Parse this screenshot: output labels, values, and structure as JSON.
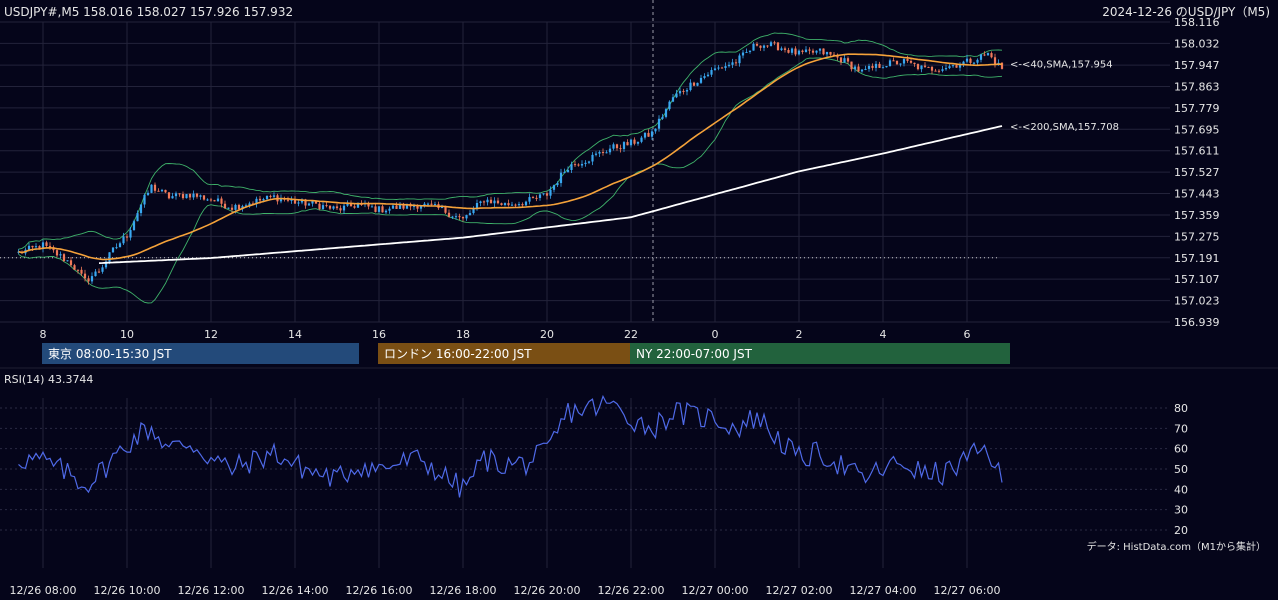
{
  "header": {
    "symbol_info": "USDJPY#,M5 158.016 158.027 157.926 157.932",
    "title_right": "2024-12-26 のUSD/JPY（M5)"
  },
  "sessions": [
    {
      "label": "東京 08:00-15:30 JST",
      "color": "#234a7a",
      "start": "12/26 08:00",
      "end": "12/26 15:30"
    },
    {
      "label": "ロンドン 16:00-22:00 JST",
      "color": "#7a4f14",
      "start": "12/26 16:00",
      "end": "12/26 22:00"
    },
    {
      "label": "NY 22:00-07:00 JST",
      "color": "#22623d",
      "start": "12/26 22:00",
      "end": "12/27 07:00"
    }
  ],
  "rsi_label": "RSI(14) 43.3744",
  "source_note": "データ: HistData.com（M1から集計）",
  "colors": {
    "background": "#05051a",
    "bull": "#39a7f0",
    "bear": "#f07a5a",
    "sma40": "#f5a23a",
    "sma200": "#ffffff",
    "bollinger": "#3fb26a",
    "rsi": "#4f6ae8"
  },
  "chart_data": [
    {
      "type": "candlestick",
      "series": [
        {
          "name": "<-<40,SMA,157.954",
          "kind": "sma",
          "period": 40,
          "last": 157.954
        },
        {
          "name": "<-<200,SMA,157.708",
          "kind": "sma",
          "period": 200,
          "last": 157.708
        }
      ],
      "ylim": [
        156.939,
        158.116
      ],
      "y_ticks": [
        "158.116",
        "158.032",
        "157.947",
        "157.863",
        "157.779",
        "157.695",
        "157.611",
        "157.527",
        "157.443",
        "157.359",
        "157.275",
        "157.191",
        "157.107",
        "157.023",
        "156.939"
      ],
      "x_ticks": [
        "8",
        "10",
        "12",
        "14",
        "16",
        "18",
        "20",
        "22",
        "0",
        "2",
        "4",
        "6"
      ],
      "x_range": [
        "12/26 07:25",
        "12/27 06:50"
      ],
      "reference_level": 157.191,
      "close_anchors": [
        [
          "12/26 07:25",
          157.21
        ],
        [
          "12/26 08:00",
          157.24
        ],
        [
          "12/26 08:40",
          157.17
        ],
        [
          "12/26 09:00",
          157.1
        ],
        [
          "12/26 09:20",
          157.14
        ],
        [
          "12/26 09:40",
          157.22
        ],
        [
          "12/26 10:00",
          157.28
        ],
        [
          "12/26 10:20",
          157.4
        ],
        [
          "12/26 10:35",
          157.47
        ],
        [
          "12/26 11:00",
          157.43
        ],
        [
          "12/26 11:30",
          157.44
        ],
        [
          "12/26 12:00",
          157.42
        ],
        [
          "12/26 12:30",
          157.39
        ],
        [
          "12/26 13:00",
          157.41
        ],
        [
          "12/26 13:30",
          157.43
        ],
        [
          "12/26 14:00",
          157.41
        ],
        [
          "12/26 14:30",
          157.4
        ],
        [
          "12/26 15:00",
          157.38
        ],
        [
          "12/26 15:30",
          157.4
        ],
        [
          "12/26 16:00",
          157.38
        ],
        [
          "12/26 16:30",
          157.39
        ],
        [
          "12/26 17:00",
          157.4
        ],
        [
          "12/26 17:30",
          157.38
        ],
        [
          "12/26 18:00",
          157.34
        ],
        [
          "12/26 18:30",
          157.42
        ],
        [
          "12/26 19:00",
          157.4
        ],
        [
          "12/26 19:30",
          157.41
        ],
        [
          "12/26 20:00",
          157.44
        ],
        [
          "12/26 20:30",
          157.55
        ],
        [
          "12/26 21:00",
          157.58
        ],
        [
          "12/26 21:30",
          157.62
        ],
        [
          "12/26 22:00",
          157.64
        ],
        [
          "12/26 22:30",
          157.68
        ],
        [
          "12/26 23:00",
          157.82
        ],
        [
          "12/26 23:30",
          157.88
        ],
        [
          "12/27 00:00",
          157.93
        ],
        [
          "12/27 00:30",
          157.96
        ],
        [
          "12/27 01:00",
          158.03
        ],
        [
          "12/27 01:30",
          158.02
        ],
        [
          "12/27 02:00",
          157.99
        ],
        [
          "12/27 02:30",
          158.0
        ],
        [
          "12/27 03:00",
          157.97
        ],
        [
          "12/27 03:30",
          157.92
        ],
        [
          "12/27 04:00",
          157.95
        ],
        [
          "12/27 04:30",
          157.96
        ],
        [
          "12/27 05:00",
          157.93
        ],
        [
          "12/27 05:30",
          157.94
        ],
        [
          "12/27 06:00",
          157.96
        ],
        [
          "12/27 06:30",
          157.99
        ],
        [
          "12/27 06:50",
          157.932
        ]
      ],
      "sma200_anchors": [
        [
          "12/26 09:20",
          157.17
        ],
        [
          "12/26 12:00",
          157.19
        ],
        [
          "12/26 15:00",
          157.23
        ],
        [
          "12/26 18:00",
          157.27
        ],
        [
          "12/26 20:00",
          157.31
        ],
        [
          "12/26 22:00",
          157.35
        ],
        [
          "12/27 00:00",
          157.44
        ],
        [
          "12/27 02:00",
          157.53
        ],
        [
          "12/27 04:00",
          157.6
        ],
        [
          "12/27 06:50",
          157.708
        ]
      ]
    },
    {
      "type": "line",
      "series": [
        {
          "name": "RSI(14)",
          "last": 43.3744
        }
      ],
      "ylim": [
        20,
        85
      ],
      "y_ticks": [
        80,
        70,
        60,
        50,
        40,
        30,
        20
      ],
      "x_ticks": [
        "12/26 08:00",
        "12/26 10:00",
        "12/26 12:00",
        "12/26 14:00",
        "12/26 16:00",
        "12/26 18:00",
        "12/26 20:00",
        "12/26 22:00",
        "12/27 00:00",
        "12/27 02:00",
        "12/27 04:00",
        "12/27 06:00"
      ],
      "rsi_anchors": [
        [
          "12/26 07:25",
          55
        ],
        [
          "12/26 08:00",
          54
        ],
        [
          "12/26 08:40",
          47
        ],
        [
          "12/26 09:00",
          42
        ],
        [
          "12/26 09:20",
          48
        ],
        [
          "12/26 09:40",
          55
        ],
        [
          "12/26 10:00",
          62
        ],
        [
          "12/26 10:20",
          68
        ],
        [
          "12/26 10:35",
          70
        ],
        [
          "12/26 11:00",
          60
        ],
        [
          "12/26 11:30",
          63
        ],
        [
          "12/26 12:00",
          55
        ],
        [
          "12/26 12:30",
          50
        ],
        [
          "12/26 13:00",
          54
        ],
        [
          "12/26 13:30",
          58
        ],
        [
          "12/26 14:00",
          52
        ],
        [
          "12/26 14:30",
          48
        ],
        [
          "12/26 15:00",
          45
        ],
        [
          "12/26 15:30",
          52
        ],
        [
          "12/26 16:00",
          50
        ],
        [
          "12/26 16:30",
          53
        ],
        [
          "12/26 17:00",
          55
        ],
        [
          "12/26 17:30",
          47
        ],
        [
          "12/26 18:00",
          40
        ],
        [
          "12/26 18:30",
          55
        ],
        [
          "12/26 19:00",
          52
        ],
        [
          "12/26 19:30",
          53
        ],
        [
          "12/26 20:00",
          58
        ],
        [
          "12/26 20:30",
          78
        ],
        [
          "12/26 21:00",
          80
        ],
        [
          "12/26 21:30",
          82
        ],
        [
          "12/26 22:00",
          75
        ],
        [
          "12/26 22:30",
          70
        ],
        [
          "12/26 23:00",
          78
        ],
        [
          "12/26 23:30",
          76
        ],
        [
          "12/27 00:00",
          75
        ],
        [
          "12/27 00:30",
          70
        ],
        [
          "12/27 01:00",
          76
        ],
        [
          "12/27 01:30",
          65
        ],
        [
          "12/27 02:00",
          55
        ],
        [
          "12/27 02:30",
          58
        ],
        [
          "12/27 03:00",
          52
        ],
        [
          "12/27 03:30",
          45
        ],
        [
          "12/27 04:00",
          50
        ],
        [
          "12/27 04:30",
          53
        ],
        [
          "12/27 05:00",
          47
        ],
        [
          "12/27 05:30",
          48
        ],
        [
          "12/27 06:00",
          55
        ],
        [
          "12/27 06:30",
          60
        ],
        [
          "12/27 06:50",
          43.3744
        ]
      ]
    }
  ]
}
